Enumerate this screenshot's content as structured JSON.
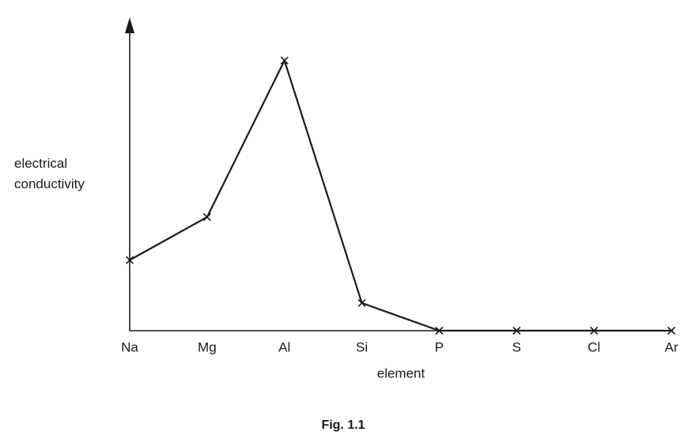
{
  "chart_data": {
    "type": "line",
    "caption": "Fig. 1.1",
    "xlabel": "element",
    "ylabel": "electrical conductivity",
    "categories": [
      "Na",
      "Mg",
      "Al",
      "Si",
      "P",
      "S",
      "Cl",
      "Ar"
    ],
    "values": [
      23,
      37,
      88,
      9,
      0,
      0,
      0,
      0
    ],
    "color": "#1a1a1a",
    "ylim": [
      0,
      100
    ],
    "marker": "x"
  }
}
